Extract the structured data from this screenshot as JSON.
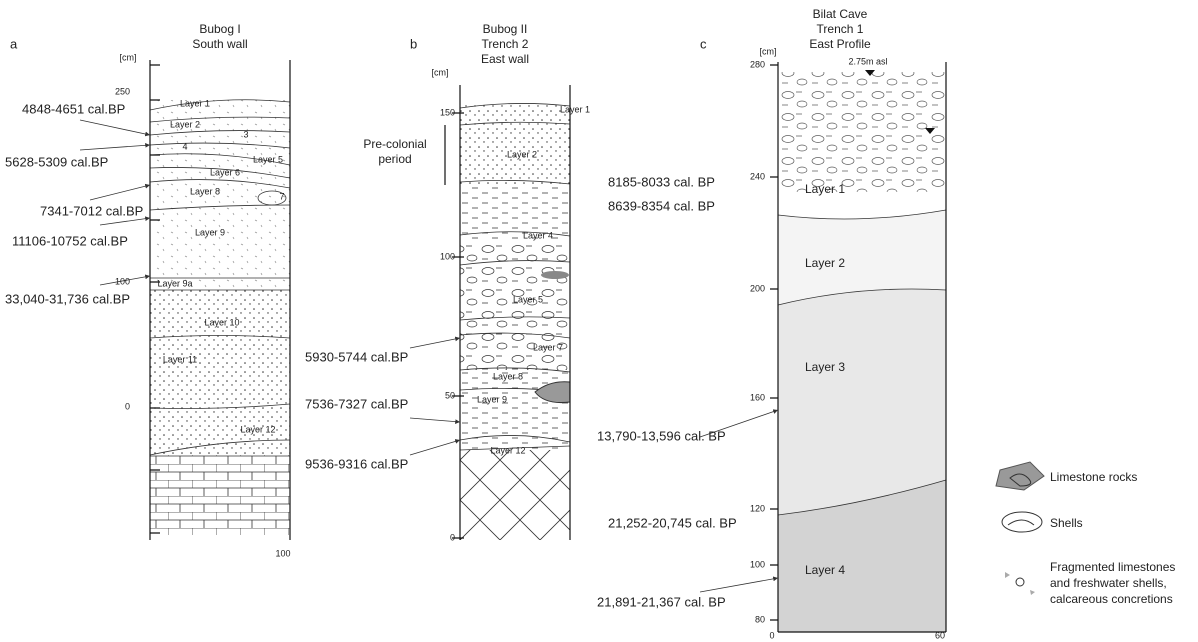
{
  "panels": [
    {
      "letter": "a",
      "title": [
        "Bubog I",
        "South wall"
      ],
      "unit": "[cm]",
      "ticks": [
        "250",
        "100",
        "0"
      ],
      "x_tick": "100",
      "layers": [
        "Layer 1",
        "Layer 2",
        "3",
        "4",
        "Layer 5",
        "Layer 6",
        "Layer 8",
        "7",
        "Layer 9",
        "Layer 9a",
        "Layer 10",
        "Layer 11",
        "Layer 12"
      ],
      "dates": [
        "4848-4651 cal.BP",
        "5628-5309 cal.BP",
        "7341-7012 cal.BP",
        "11106-10752 cal.BP",
        "33,040-31,736 cal.BP"
      ]
    },
    {
      "letter": "b",
      "title": [
        "Bubog II",
        "Trench 2",
        "East wall"
      ],
      "unit": "[cm]",
      "ticks": [
        "150",
        "100",
        "50",
        "0"
      ],
      "period": [
        "Pre-colonial",
        "period"
      ],
      "layers": [
        "Layer 1",
        "Layer 2",
        "Layer 4",
        "Layer 5",
        "Layer 7",
        "Layer 8",
        "Layer 9",
        "Layer 12"
      ],
      "dates": [
        "5930-5744 cal.BP",
        "7536-7327 cal.BP",
        "9536-9316 cal.BP"
      ]
    },
    {
      "letter": "c",
      "title": [
        "Bilat Cave",
        "Trench 1",
        "East Profile"
      ],
      "unit": "[cm]",
      "ticks": [
        "280",
        "240",
        "200",
        "160",
        "120",
        "100",
        "80"
      ],
      "x_ticks": [
        "0",
        "60"
      ],
      "elevation": "2.75m asl",
      "layers": [
        "Layer 1",
        "Layer 2",
        "Layer 3",
        "Layer 4"
      ],
      "dates": [
        "8185-8033 cal. BP",
        "8639-8354 cal. BP",
        "13,790-13,596 cal. BP",
        "21,252-20,745 cal. BP",
        "21,891-21,367 cal. BP"
      ]
    }
  ],
  "legend": [
    [
      "Limestone rocks"
    ],
    [
      "Shells"
    ],
    [
      "Fragmented limestones",
      "and freshwater shells,",
      "calcareous concretions"
    ]
  ]
}
